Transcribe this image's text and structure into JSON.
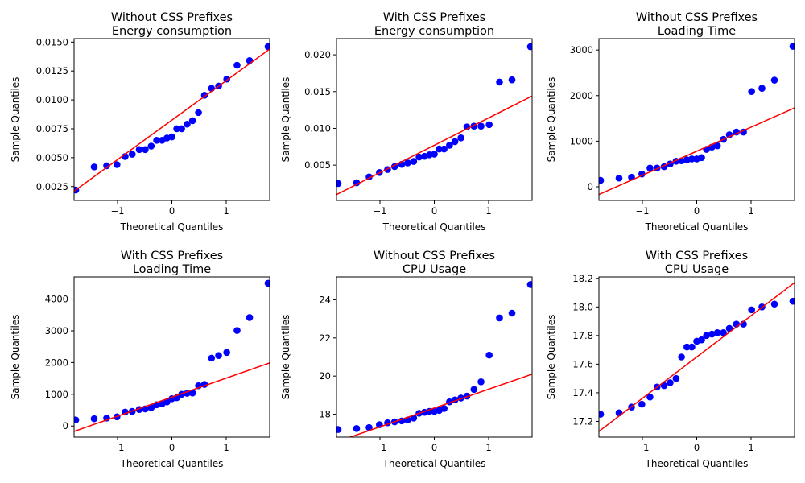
{
  "colors": {
    "points": "#0000ff",
    "fit_line": "#ff0000",
    "axes": "#000000",
    "background": "#ffffff"
  },
  "chart_data": [
    {
      "type": "scatter",
      "title": [
        "Without CSS Prefixes",
        "Energy consumption"
      ],
      "xlabel": "Theoretical Quantiles",
      "ylabel": "Sample Quantiles",
      "xlim": [
        -1.8,
        1.8
      ],
      "ylim": [
        0.0013,
        0.0153
      ],
      "xticks": [
        -1,
        0,
        1
      ],
      "xtick_labels": [
        "−1",
        "0",
        "1"
      ],
      "yticks": [
        0.0025,
        0.005,
        0.0075,
        0.01,
        0.0125,
        0.015
      ],
      "ytick_labels": [
        "0.0025",
        "0.0050",
        "0.0075",
        "0.0100",
        "0.0125",
        "0.0150"
      ],
      "fit_line": {
        "x": [
          -1.8,
          1.8
        ],
        "y": [
          0.0021,
          0.0144
        ]
      },
      "x": [
        -1.77,
        -1.43,
        -1.2,
        -1.01,
        -0.86,
        -0.73,
        -0.6,
        -0.49,
        -0.38,
        -0.28,
        -0.18,
        -0.09,
        0.0,
        0.09,
        0.18,
        0.28,
        0.38,
        0.49,
        0.6,
        0.73,
        0.86,
        1.01,
        1.2,
        1.43,
        1.77
      ],
      "y": [
        0.0022,
        0.0042,
        0.0043,
        0.0044,
        0.0051,
        0.0053,
        0.0057,
        0.0057,
        0.006,
        0.0065,
        0.0065,
        0.0067,
        0.0068,
        0.0075,
        0.0075,
        0.0079,
        0.0082,
        0.0089,
        0.0104,
        0.011,
        0.0112,
        0.0118,
        0.013,
        0.0134,
        0.0146
      ]
    },
    {
      "type": "scatter",
      "title": [
        "With CSS Prefixes",
        "Energy consumption"
      ],
      "xlabel": "Theoretical Quantiles",
      "ylabel": "Sample Quantiles",
      "xlim": [
        -1.8,
        1.8
      ],
      "ylim": [
        0.0002,
        0.0222
      ],
      "xticks": [
        -1,
        0,
        1
      ],
      "xtick_labels": [
        "−1",
        "0",
        "1"
      ],
      "yticks": [
        0.005,
        0.01,
        0.015,
        0.02
      ],
      "ytick_labels": [
        "0.005",
        "0.010",
        "0.015",
        "0.020"
      ],
      "fit_line": {
        "x": [
          -1.8,
          1.8
        ],
        "y": [
          0.001,
          0.0144
        ]
      },
      "x": [
        -1.77,
        -1.43,
        -1.2,
        -1.01,
        -0.86,
        -0.73,
        -0.6,
        -0.49,
        -0.38,
        -0.28,
        -0.18,
        -0.09,
        0.0,
        0.09,
        0.18,
        0.28,
        0.38,
        0.49,
        0.6,
        0.73,
        0.86,
        1.01,
        1.2,
        1.43,
        1.77
      ],
      "y": [
        0.0025,
        0.0026,
        0.0034,
        0.004,
        0.0044,
        0.0048,
        0.0051,
        0.0053,
        0.0055,
        0.0061,
        0.0062,
        0.0064,
        0.0065,
        0.0072,
        0.0072,
        0.0077,
        0.0082,
        0.0087,
        0.0102,
        0.0103,
        0.0103,
        0.0105,
        0.0163,
        0.0166,
        0.0211
      ]
    },
    {
      "type": "scatter",
      "title": [
        "Without CSS Prefixes",
        "Loading Time"
      ],
      "xlabel": "Theoretical Quantiles",
      "ylabel": "Sample Quantiles",
      "xlim": [
        -1.8,
        1.8
      ],
      "ylim": [
        -300,
        3250
      ],
      "xticks": [
        -1,
        0,
        1
      ],
      "xtick_labels": [
        "−1",
        "0",
        "1"
      ],
      "yticks": [
        0,
        1000,
        2000,
        3000
      ],
      "ytick_labels": [
        "0",
        "1000",
        "2000",
        "3000"
      ],
      "fit_line": {
        "x": [
          -1.8,
          1.8
        ],
        "y": [
          -170,
          1730
        ]
      },
      "x": [
        -1.77,
        -1.43,
        -1.2,
        -1.01,
        -0.86,
        -0.73,
        -0.6,
        -0.49,
        -0.38,
        -0.28,
        -0.18,
        -0.09,
        0.0,
        0.09,
        0.18,
        0.28,
        0.38,
        0.49,
        0.6,
        0.73,
        0.86,
        1.01,
        1.2,
        1.43,
        1.77
      ],
      "y": [
        140,
        190,
        210,
        280,
        410,
        410,
        440,
        500,
        560,
        570,
        590,
        610,
        610,
        640,
        820,
        870,
        900,
        1040,
        1140,
        1200,
        1200,
        2090,
        2160,
        2340,
        3080
      ]
    },
    {
      "type": "scatter",
      "title": [
        "With CSS Prefixes",
        "Loading Time"
      ],
      "xlabel": "Theoretical Quantiles",
      "ylabel": "Sample Quantiles",
      "xlim": [
        -1.8,
        1.8
      ],
      "ylim": [
        -350,
        4700
      ],
      "xticks": [
        -1,
        0,
        1
      ],
      "xtick_labels": [
        "−1",
        "0",
        "1"
      ],
      "yticks": [
        0,
        1000,
        2000,
        3000,
        4000
      ],
      "ytick_labels": [
        "0",
        "1000",
        "2000",
        "3000",
        "4000"
      ],
      "fit_line": {
        "x": [
          -1.8,
          1.8
        ],
        "y": [
          -170,
          1990
        ]
      },
      "x": [
        -1.77,
        -1.43,
        -1.2,
        -1.01,
        -0.86,
        -0.73,
        -0.6,
        -0.49,
        -0.38,
        -0.28,
        -0.18,
        -0.09,
        0.0,
        0.09,
        0.18,
        0.28,
        0.38,
        0.49,
        0.6,
        0.73,
        0.86,
        1.01,
        1.2,
        1.43,
        1.77
      ],
      "y": [
        190,
        230,
        250,
        290,
        440,
        460,
        520,
        540,
        580,
        670,
        700,
        760,
        860,
        890,
        1000,
        1030,
        1040,
        1270,
        1310,
        2140,
        2220,
        2320,
        3010,
        3420,
        4500
      ]
    },
    {
      "type": "scatter",
      "title": [
        "Without CSS Prefixes",
        "CPU Usage"
      ],
      "xlabel": "Theoretical Quantiles",
      "ylabel": "Sample Quantiles",
      "xlim": [
        -1.8,
        1.8
      ],
      "ylim": [
        16.8,
        25.2
      ],
      "xticks": [
        -1,
        0,
        1
      ],
      "xtick_labels": [
        "−1",
        "0",
        "1"
      ],
      "yticks": [
        18,
        20,
        22,
        24
      ],
      "ytick_labels": [
        "18",
        "20",
        "22",
        "24"
      ],
      "fit_line": {
        "x": [
          -1.8,
          1.8
        ],
        "y": [
          16.55,
          20.1
        ]
      },
      "x": [
        -1.77,
        -1.43,
        -1.2,
        -1.01,
        -0.86,
        -0.73,
        -0.6,
        -0.49,
        -0.38,
        -0.28,
        -0.18,
        -0.09,
        0.0,
        0.09,
        0.18,
        0.28,
        0.38,
        0.49,
        0.6,
        0.73,
        0.86,
        1.01,
        1.2,
        1.43,
        1.77
      ],
      "y": [
        17.2,
        17.25,
        17.3,
        17.45,
        17.55,
        17.6,
        17.65,
        17.7,
        17.8,
        18.05,
        18.1,
        18.15,
        18.15,
        18.2,
        18.3,
        18.65,
        18.75,
        18.85,
        18.95,
        19.3,
        19.7,
        21.1,
        23.05,
        23.3,
        24.8
      ]
    },
    {
      "type": "scatter",
      "title": [
        "With CSS Prefixes",
        "CPU Usage"
      ],
      "xlabel": "Theoretical Quantiles",
      "ylabel": "Sample Quantiles",
      "xlim": [
        -1.8,
        1.8
      ],
      "ylim": [
        17.09,
        18.21
      ],
      "xticks": [
        -1,
        0,
        1
      ],
      "xtick_labels": [
        "−1",
        "0",
        "1"
      ],
      "yticks": [
        17.2,
        17.4,
        17.6,
        17.8,
        18.0,
        18.2
      ],
      "ytick_labels": [
        "17.2",
        "17.4",
        "17.6",
        "17.8",
        "18.0",
        "18.2"
      ],
      "fit_line": {
        "x": [
          -1.8,
          1.8
        ],
        "y": [
          17.13,
          18.17
        ]
      },
      "x": [
        -1.77,
        -1.43,
        -1.2,
        -1.01,
        -0.86,
        -0.73,
        -0.6,
        -0.49,
        -0.38,
        -0.28,
        -0.18,
        -0.09,
        0.0,
        0.09,
        0.18,
        0.28,
        0.38,
        0.49,
        0.6,
        0.73,
        0.86,
        1.01,
        1.2,
        1.43,
        1.77
      ],
      "y": [
        17.25,
        17.26,
        17.3,
        17.32,
        17.37,
        17.44,
        17.45,
        17.47,
        17.5,
        17.65,
        17.72,
        17.72,
        17.76,
        17.77,
        17.8,
        17.81,
        17.82,
        17.82,
        17.85,
        17.88,
        17.88,
        17.98,
        18.0,
        18.02,
        18.04
      ]
    }
  ]
}
